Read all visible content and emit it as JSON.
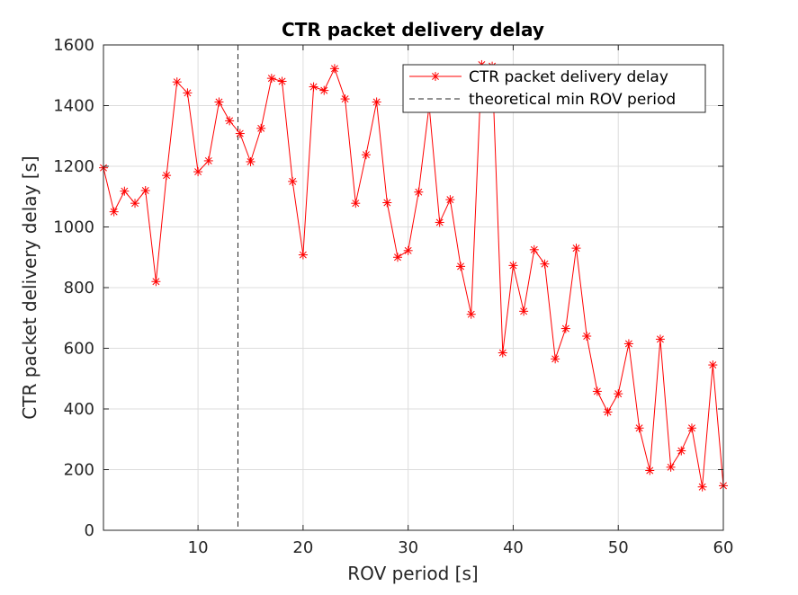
{
  "chart_data": {
    "type": "line",
    "title": "CTR packet delivery delay",
    "xlabel": "ROV period [s]",
    "ylabel": "CTR packet delivery delay [s]",
    "xlim": [
      1,
      60
    ],
    "ylim": [
      0,
      1600
    ],
    "xticks": [
      10,
      20,
      30,
      40,
      50,
      60
    ],
    "yticks": [
      0,
      200,
      400,
      600,
      800,
      1000,
      1200,
      1400,
      1600
    ],
    "grid": true,
    "legend_position": "top-right",
    "series": [
      {
        "name": "CTR packet delivery delay",
        "color": "#ff0000",
        "marker": "asterisk",
        "x": [
          1,
          2,
          3,
          4,
          5,
          6,
          7,
          8,
          9,
          10,
          11,
          12,
          13,
          14,
          15,
          16,
          17,
          18,
          19,
          20,
          21,
          22,
          23,
          24,
          25,
          26,
          27,
          28,
          29,
          30,
          31,
          32,
          33,
          34,
          35,
          36,
          37,
          38,
          39,
          40,
          41,
          42,
          43,
          44,
          45,
          46,
          47,
          48,
          49,
          50,
          51,
          52,
          53,
          54,
          55,
          56,
          57,
          58,
          59,
          60
        ],
        "y": [
          1195,
          1050,
          1118,
          1078,
          1120,
          820,
          1170,
          1478,
          1442,
          1182,
          1218,
          1412,
          1350,
          1308,
          1215,
          1325,
          1490,
          1480,
          1150,
          908,
          1462,
          1450,
          1522,
          1422,
          1078,
          1238,
          1412,
          1080,
          900,
          922,
          1115,
          1400,
          1015,
          1090,
          870,
          712,
          1535,
          1530,
          585,
          873,
          722,
          925,
          878,
          565,
          665,
          930,
          640,
          458,
          390,
          450,
          615,
          337,
          197,
          630,
          208,
          262,
          337,
          143,
          545,
          147
        ]
      },
      {
        "name": "theoretical min ROV period",
        "color": "#262626",
        "style": "dashed",
        "x_value": 13.8
      }
    ]
  }
}
